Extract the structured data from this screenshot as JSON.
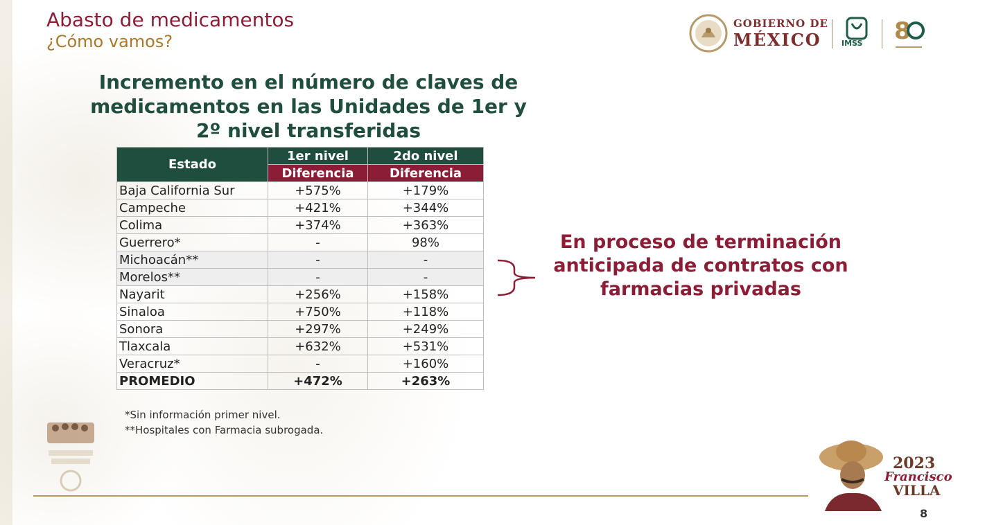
{
  "header": {
    "title": "Abasto de medicamentos",
    "subtitle": "¿Cómo vamos?",
    "gov_logo_line1": "GOBIERNO DE",
    "gov_logo_line2": "MÉXICO",
    "imss_label": "IMSS"
  },
  "table_heading": "Incremento en el número de claves de medicamentos en las Unidades de 1er y 2º nivel transferidas",
  "table": {
    "col_estado": "Estado",
    "col_level1": "1er nivel",
    "col_level2": "2do nivel",
    "col_diff1": "Diferencia",
    "col_diff2": "Diferencia",
    "rows": [
      {
        "estado": "Baja California Sur",
        "n1": "+575%",
        "n2": "+179%"
      },
      {
        "estado": "Campeche",
        "n1": "+421%",
        "n2": "+344%"
      },
      {
        "estado": "Colima",
        "n1": "+374%",
        "n2": "+363%"
      },
      {
        "estado": "Guerrero*",
        "n1": "-",
        "n2": "98%"
      },
      {
        "estado": "Michoacán**",
        "n1": "-",
        "n2": "-"
      },
      {
        "estado": "Morelos**",
        "n1": "-",
        "n2": "-"
      },
      {
        "estado": "Nayarit",
        "n1": "+256%",
        "n2": "+158%"
      },
      {
        "estado": "Sinaloa",
        "n1": "+750%",
        "n2": "+118%"
      },
      {
        "estado": "Sonora",
        "n1": "+297%",
        "n2": "+249%"
      },
      {
        "estado": "Tlaxcala",
        "n1": "+632%",
        "n2": "+531%"
      },
      {
        "estado": "Veracruz*",
        "n1": "-",
        "n2": "+160%"
      }
    ],
    "average": {
      "estado": "PROMEDIO",
      "n1": "+472%",
      "n2": "+263%"
    }
  },
  "notes": {
    "note1": "*Sin información primer nivel.",
    "note2": "**Hospitales con Farmacia subrogada."
  },
  "callout": "En proceso de terminación anticipada de contratos con farmacias privadas",
  "footer": {
    "year": "2023",
    "villa_name": "Francisco",
    "villa_name2": "VILLA",
    "page_number": "8"
  },
  "colors": {
    "maroon": "#8b1e36",
    "green": "#1f4d3e",
    "gold": "#a8792c"
  }
}
